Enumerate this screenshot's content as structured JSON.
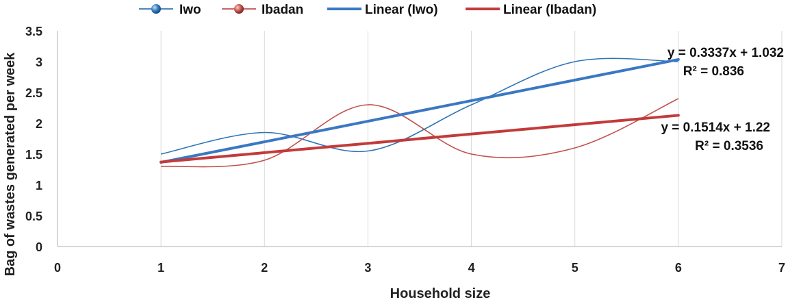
{
  "chart_data": {
    "type": "line",
    "xlabel": "Household size",
    "ylabel": "Bag of wastes generated per week",
    "xlim": [
      0,
      7
    ],
    "ylim": [
      0,
      3.5
    ],
    "xticks": [
      "0",
      "1",
      "2",
      "3",
      "4",
      "5",
      "6",
      "7"
    ],
    "yticks": [
      "0",
      "0.5",
      "1",
      "1.5",
      "2",
      "2.5",
      "3",
      "3.5"
    ],
    "grid": "vertical",
    "legend_position": "top",
    "x": [
      1,
      2,
      3,
      4,
      5,
      6
    ],
    "series": [
      {
        "name": "Iwo",
        "color": "#2e75b6",
        "smooth": true,
        "values": [
          1.5,
          1.85,
          1.55,
          2.3,
          3.0,
          3.0
        ]
      },
      {
        "name": "Ibadan",
        "color": "#c0504d",
        "smooth": true,
        "values": [
          1.3,
          1.4,
          2.3,
          1.5,
          1.6,
          2.4
        ]
      }
    ],
    "trendlines": [
      {
        "name": "Linear (Iwo)",
        "color": "#3a78c3",
        "slope": 0.3337,
        "intercept": 1.032,
        "x_range": [
          1,
          6
        ],
        "equation": "y = 0.3337x + 1.032",
        "r2": "R² = 0.836"
      },
      {
        "name": "Linear (Ibadan)",
        "color": "#c23b3b",
        "slope": 0.1514,
        "intercept": 1.22,
        "x_range": [
          1,
          6
        ],
        "equation": "y = 0.1514x + 1.22",
        "r2": "R² = 0.3536"
      }
    ]
  }
}
